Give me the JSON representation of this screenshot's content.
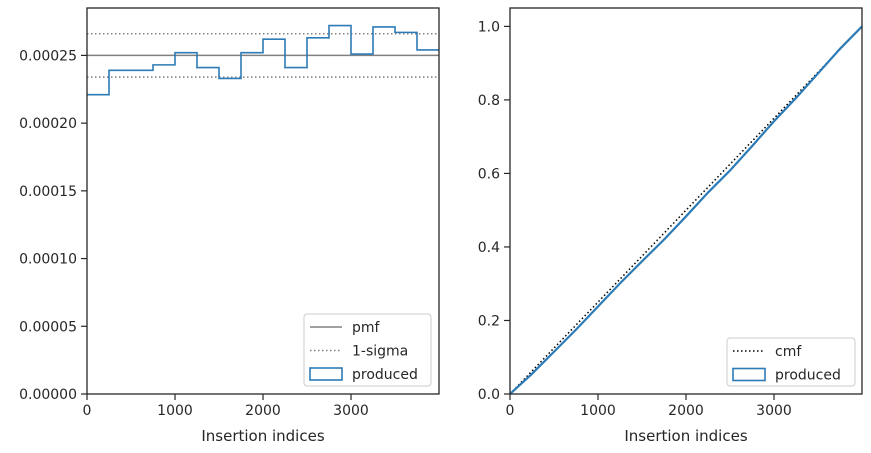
{
  "chart_data": [
    {
      "type": "step",
      "xlabel": "Insertion indices",
      "ylabel": "",
      "xlim": [
        0,
        4000
      ],
      "ylim": [
        0,
        0.000285
      ],
      "xticks": [
        0,
        1000,
        2000,
        3000
      ],
      "xtick_labels": [
        "0",
        "1000",
        "2000",
        "3000"
      ],
      "yticks": [
        0,
        5e-05,
        0.0001,
        0.00015,
        0.0002,
        0.00025
      ],
      "ytick_labels": [
        "0.00000",
        "0.00005",
        "0.00010",
        "0.00015",
        "0.00020",
        "0.00025"
      ],
      "grid": false,
      "legend_position": "lower-right",
      "legend": [
        "pmf",
        "1-sigma",
        "produced"
      ],
      "series": [
        {
          "name": "pmf",
          "style": "solid",
          "color": "#808080",
          "values": [
            0.00025
          ]
        },
        {
          "name": "1-sigma",
          "style": "dotted",
          "color": "#808080",
          "values": [
            0.000266,
            0.000234
          ]
        },
        {
          "name": "produced",
          "style": "step-histogram",
          "color": "#2c7bb6",
          "bin_edges": [
            0,
            250,
            500,
            750,
            1000,
            1250,
            1500,
            1750,
            2000,
            2250,
            2500,
            2750,
            3000,
            3250,
            3500,
            3750,
            4000
          ],
          "values": [
            0.000221,
            0.000239,
            0.000239,
            0.000243,
            0.000252,
            0.000241,
            0.000233,
            0.000252,
            0.000262,
            0.000241,
            0.000263,
            0.000272,
            0.000251,
            0.000271,
            0.000267,
            0.000254
          ]
        }
      ]
    },
    {
      "type": "line",
      "xlabel": "Insertion indices",
      "ylabel": "",
      "xlim": [
        0,
        4000
      ],
      "ylim": [
        0,
        1.05
      ],
      "xticks": [
        0,
        1000,
        2000,
        3000
      ],
      "xtick_labels": [
        "0",
        "1000",
        "2000",
        "3000"
      ],
      "yticks": [
        0,
        0.2,
        0.4,
        0.6,
        0.8,
        1.0
      ],
      "ytick_labels": [
        "0.0",
        "0.2",
        "0.4",
        "0.6",
        "0.8",
        "1.0"
      ],
      "grid": false,
      "legend_position": "lower-right",
      "legend": [
        "cmf",
        "produced"
      ],
      "series": [
        {
          "name": "cmf",
          "style": "dotted",
          "color": "#000000",
          "x": [
            0,
            4000
          ],
          "y": [
            0,
            1.0
          ]
        },
        {
          "name": "produced",
          "style": "solid",
          "color": "#2c7bb6",
          "x": [
            0,
            250,
            500,
            750,
            1000,
            1250,
            1500,
            1750,
            2000,
            2250,
            2500,
            2750,
            3000,
            3250,
            3500,
            3750,
            4000
          ],
          "y": [
            0,
            0.055,
            0.115,
            0.175,
            0.238,
            0.301,
            0.361,
            0.42,
            0.483,
            0.548,
            0.608,
            0.674,
            0.742,
            0.805,
            0.872,
            0.939,
            1.0
          ]
        }
      ]
    }
  ]
}
